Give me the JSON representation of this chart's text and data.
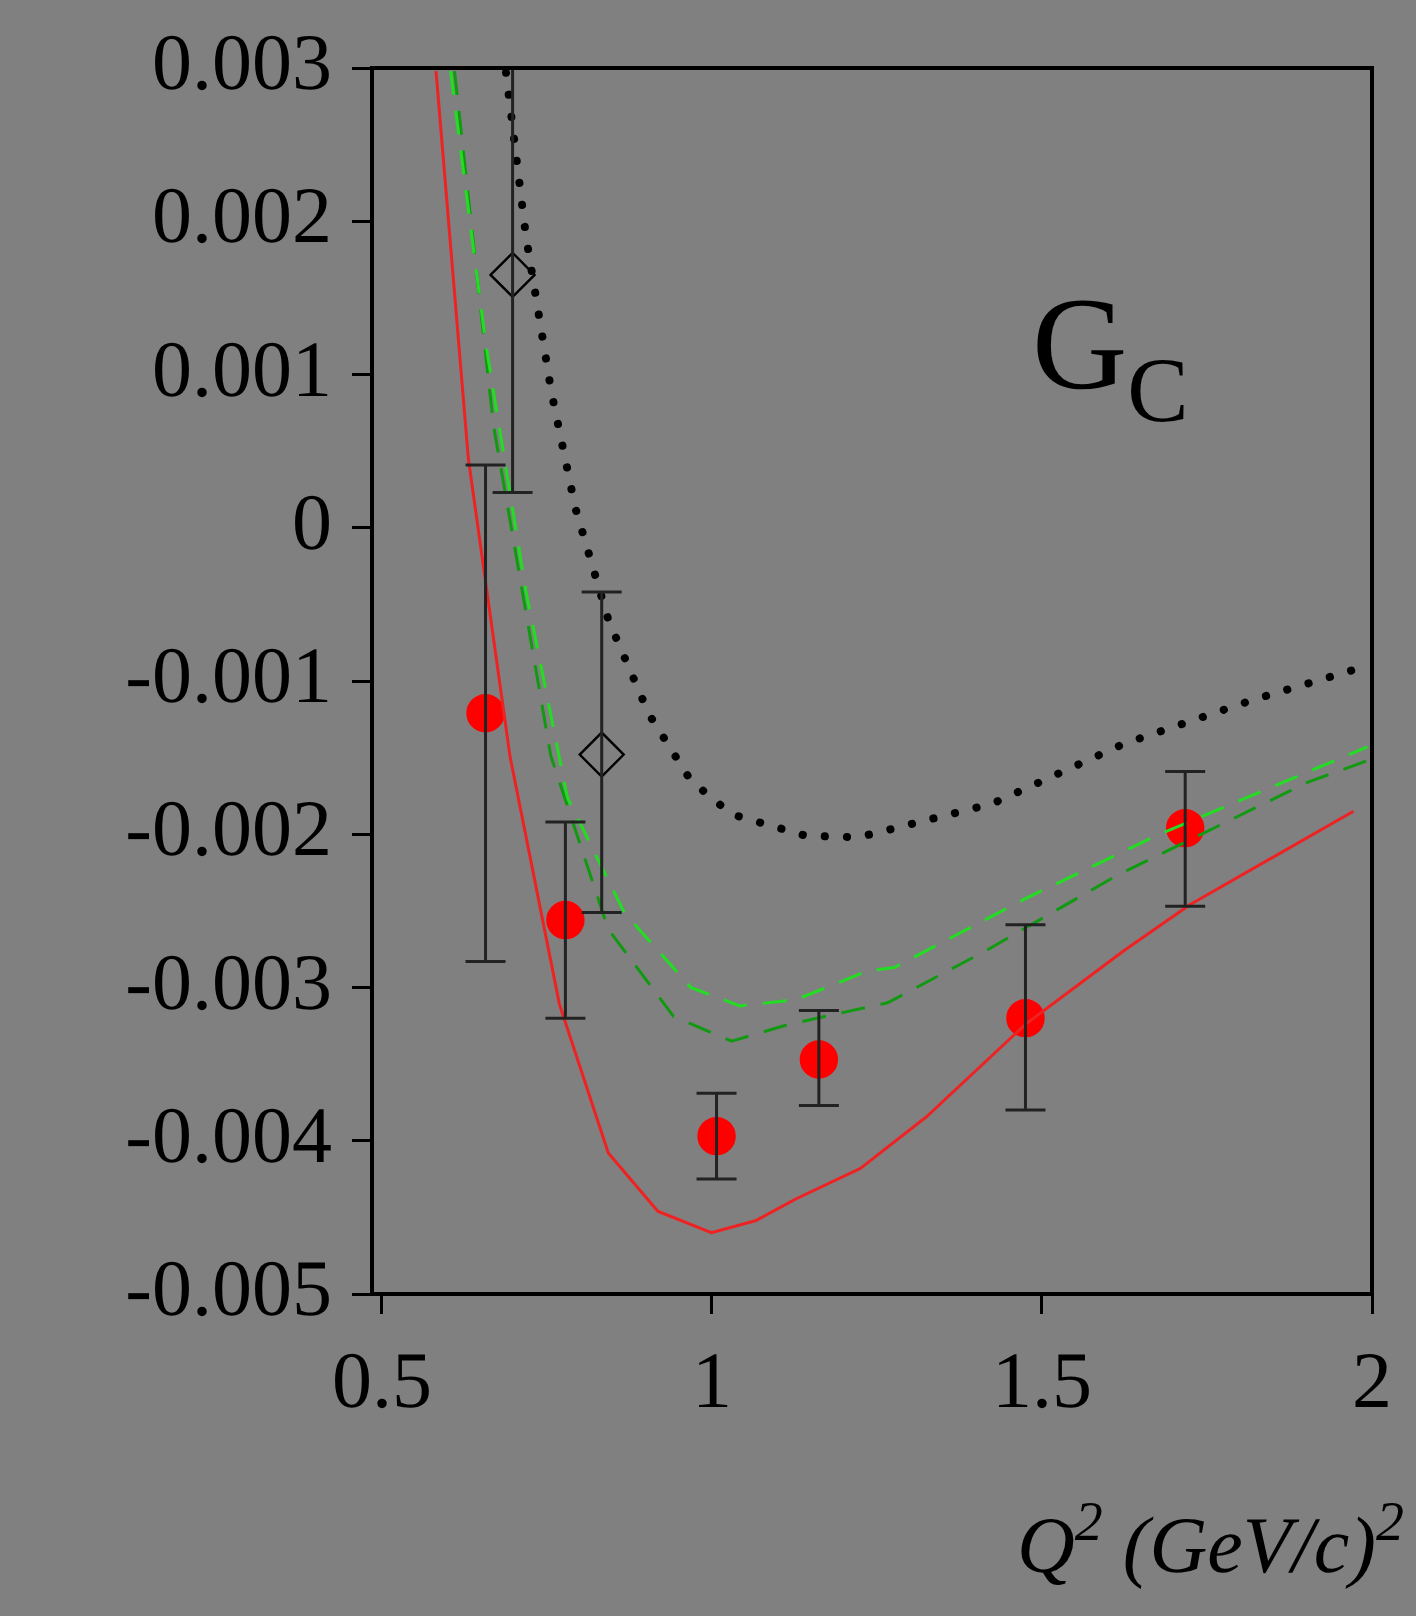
{
  "chart_data": {
    "type": "scatter",
    "annotations": [
      "G$_{C}$"
    ],
    "xlabel": "Q$^{2}$ (GeV/c)$^{2}$",
    "xlim": [
      0.485,
      2
    ],
    "xticks": [
      0.5,
      1,
      1.5,
      2
    ],
    "ylim": [
      -0.005,
      0.003
    ],
    "yticks": [
      -0.005,
      -0.004,
      -0.003,
      -0.002,
      -0.001,
      0,
      0.001,
      0.002,
      0.003
    ],
    "grid": false,
    "legend": false,
    "series": [
      {
        "type": "line",
        "color": "#ee2222",
        "line_style": "solid",
        "marker": "none",
        "x": [
          0.582,
          0.631,
          0.694,
          0.769,
          0.843,
          0.918,
          0.999,
          1.067,
          1.127,
          1.225,
          1.326,
          1.475,
          1.624,
          1.724,
          1.972
        ],
        "values": [
          0.00298,
          0.00045,
          -0.00149,
          -0.00311,
          -0.00408,
          -0.00446,
          -0.0046,
          -0.00452,
          -0.00438,
          -0.00418,
          -0.00384,
          -0.00324,
          -0.00276,
          -0.00246,
          -0.00185
        ]
      },
      {
        "type": "line",
        "color": "#22dd22",
        "line_style": "dashed",
        "marker": "none",
        "x": [
          0.604,
          0.657,
          0.718,
          0.781,
          0.867,
          0.968,
          1.042,
          1.127,
          1.237,
          1.276,
          1.475,
          1.673,
          1.993
        ],
        "values": [
          0.00298,
          0.00121,
          -0.00041,
          -0.00176,
          -0.00251,
          -0.003,
          -0.00312,
          -0.00308,
          -0.00289,
          -0.00287,
          -0.00242,
          -0.00201,
          -0.00143
        ]
      },
      {
        "type": "line",
        "color": "#119911",
        "line_style": "dashed",
        "marker": "none",
        "x": [
          0.61,
          0.669,
          0.756,
          0.843,
          0.942,
          1.03,
          1.117,
          1.266,
          1.415,
          1.613,
          1.903,
          1.993
        ],
        "values": [
          0.00298,
          0.00067,
          -0.00149,
          -0.00262,
          -0.00319,
          -0.00335,
          -0.00324,
          -0.0031,
          -0.00276,
          -0.00227,
          -0.00166,
          -0.00152
        ]
      },
      {
        "type": "line",
        "color": "#000000",
        "line_style": "dotted",
        "marker": "none",
        "x": [
          0.688,
          0.718,
          0.757,
          0.793,
          0.843,
          0.905,
          0.968,
          1.03,
          1.142,
          1.222,
          1.425,
          1.624,
          1.822,
          1.978
        ],
        "values": [
          0.00297,
          0.00191,
          0.00088,
          0.00013,
          -0.0006,
          -0.00122,
          -0.00165,
          -0.00187,
          -0.00201,
          -0.00202,
          -0.0018,
          -0.00141,
          -0.00112,
          -0.00092
        ]
      },
      {
        "type": "scatter",
        "color": "#ff0000",
        "marker": "circle",
        "x": [
          0.657,
          0.778,
          1.007,
          1.162,
          1.475,
          1.717
        ],
        "values": [
          -0.00121,
          -0.00256,
          -0.00397,
          -0.00347,
          -0.0032,
          -0.00196
        ],
        "errors": [
          [
            -0.00283,
            0.00041
          ],
          [
            -0.0032,
            -0.00192
          ],
          [
            -0.00425,
            -0.00369
          ],
          [
            -0.00377,
            -0.00315
          ],
          [
            -0.0038,
            -0.00259
          ],
          [
            -0.00247,
            -0.00159
          ]
        ]
      },
      {
        "type": "scatter",
        "color": "#000000",
        "marker": "diamond",
        "x": [
          0.698,
          0.833
        ],
        "values": [
          0.00165,
          -0.00148
        ],
        "errors": [
          [
            0.00023,
            0.003
          ],
          [
            -0.00251,
            -0.00042
          ]
        ]
      }
    ]
  }
}
